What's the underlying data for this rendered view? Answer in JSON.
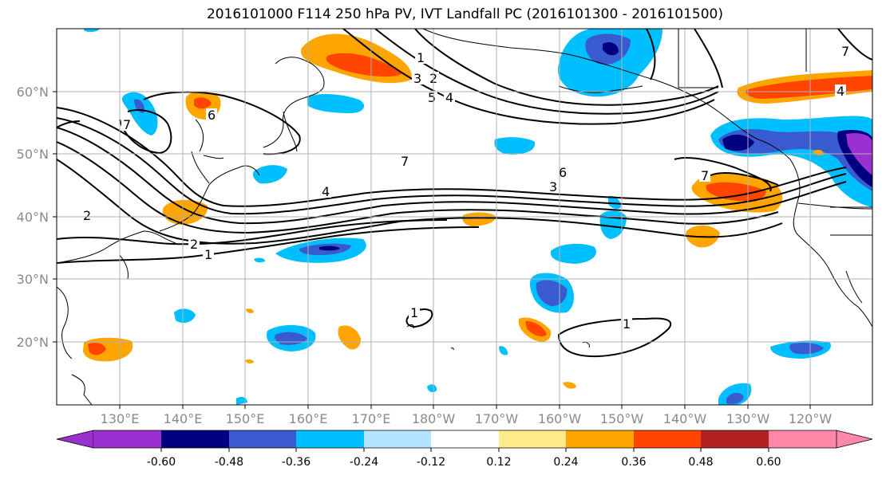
{
  "title": "2016101000 F114 250 hPa PV, IVT Landfall PC (2016101300 - 2016101500)",
  "lon_ticks": [
    "130°E",
    "140°E",
    "150°E",
    "160°E",
    "170°E",
    "180°W",
    "170°W",
    "160°W",
    "150°W",
    "140°W",
    "130°W",
    "120°W"
  ],
  "lat_ticks": [
    "60°N",
    "50°N",
    "40°N",
    "30°N",
    "20°N"
  ],
  "colorbar": {
    "colors": [
      "#9b30d0",
      "#000080",
      "#3a5ad0",
      "#00bfff",
      "#b2e3ff",
      "#ffffff",
      "#ffec8b",
      "#ffa500",
      "#ff4500",
      "#b22222",
      "#ff87a7"
    ],
    "tick_labels": [
      "-0.60",
      "-0.48",
      "-0.36",
      "-0.24",
      "-0.12",
      "0.12",
      "0.24",
      "0.36",
      "0.48",
      "0.60"
    ]
  },
  "contour_labels": [
    "1",
    "2",
    "3",
    "4",
    "5",
    "6",
    "7"
  ]
}
